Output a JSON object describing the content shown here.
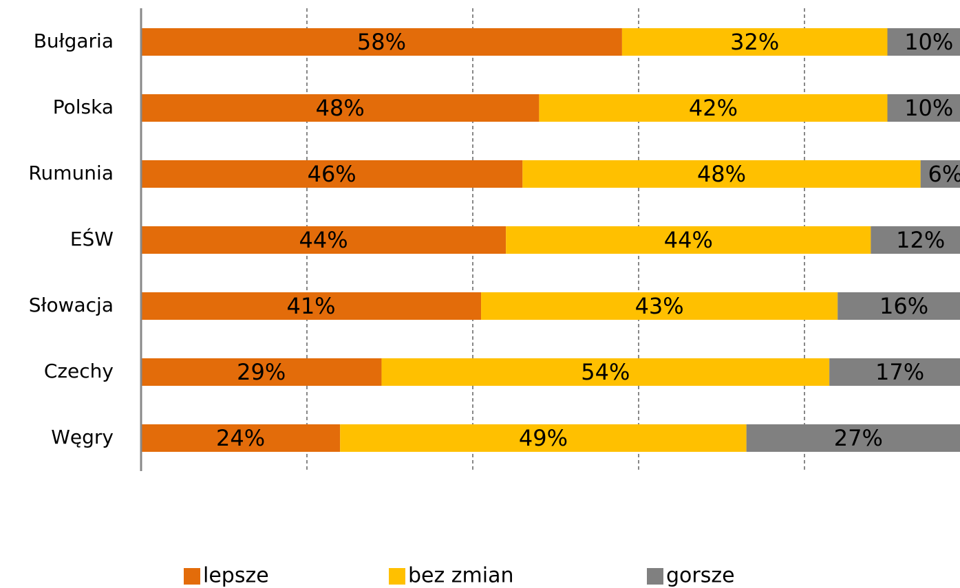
{
  "chart_data": {
    "type": "stacked-bar-horizontal",
    "categories": [
      "Bułgaria",
      "Polska",
      "Rumunia",
      "EŚW",
      "Słowacja",
      "Czechy",
      "Węgry"
    ],
    "series": [
      {
        "name": "lepsze",
        "color": "#e36c0a",
        "values": [
          58,
          48,
          46,
          44,
          41,
          29,
          24
        ],
        "value_labels": [
          "58%",
          "48%",
          "46%",
          "44%",
          "41%",
          "29%",
          "24%"
        ]
      },
      {
        "name": "bez zmian",
        "color": "#ffc000",
        "values": [
          32,
          42,
          48,
          44,
          43,
          54,
          49
        ],
        "value_labels": [
          "32%",
          "42%",
          "48%",
          "44%",
          "43%",
          "54%",
          "49%"
        ]
      },
      {
        "name": "gorsze",
        "color": "#808080",
        "values": [
          10,
          10,
          6,
          12,
          16,
          17,
          27
        ],
        "value_labels": [
          "10%",
          "10%",
          "6%",
          "12%",
          "16%",
          "17%",
          "27%"
        ]
      }
    ],
    "xlim": [
      0,
      100
    ],
    "xticks": [
      20,
      40,
      60,
      80
    ],
    "grid": true,
    "legend": "bottom"
  }
}
